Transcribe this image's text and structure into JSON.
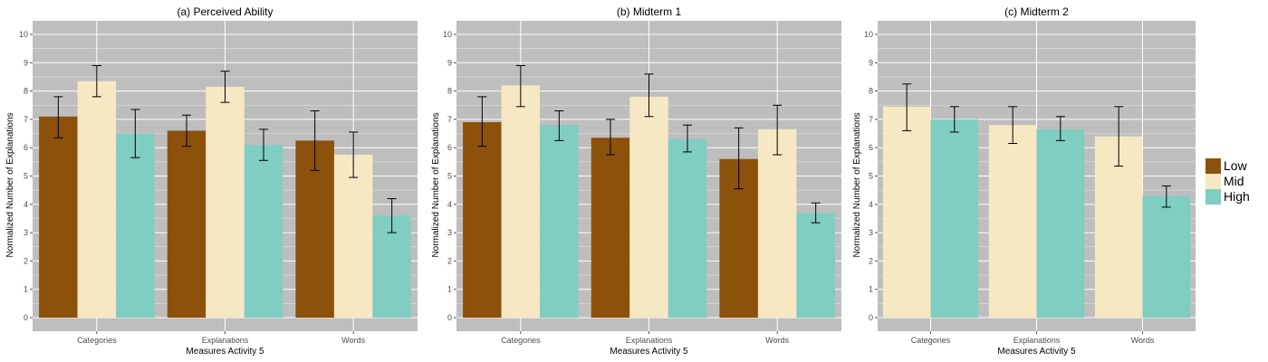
{
  "chart_data": [
    {
      "type": "bar",
      "title": "(a) Perceived Ability",
      "xlabel": "Measures Activity 5",
      "ylabel": "Normalized Number of Explanations",
      "ylim": [
        0,
        10
      ],
      "yticks": [
        0,
        1,
        2,
        3,
        4,
        5,
        6,
        7,
        8,
        9,
        10
      ],
      "grid": true,
      "categories": [
        "Categories",
        "Explanations",
        "Words"
      ],
      "series": [
        {
          "name": "Low",
          "color": "#8c510a",
          "values": [
            7.1,
            6.6,
            6.25
          ],
          "err_low": [
            6.35,
            6.05,
            5.2
          ],
          "err_high": [
            7.8,
            7.15,
            7.3
          ]
        },
        {
          "name": "Mid",
          "color": "#f6e8c3",
          "values": [
            8.35,
            8.15,
            5.75
          ],
          "err_low": [
            7.8,
            7.6,
            4.95
          ],
          "err_high": [
            8.9,
            8.7,
            6.55
          ]
        },
        {
          "name": "High",
          "color": "#80cdc1",
          "values": [
            6.5,
            6.1,
            3.6
          ],
          "err_low": [
            5.65,
            5.55,
            3.0
          ],
          "err_high": [
            7.35,
            6.65,
            4.2
          ]
        }
      ]
    },
    {
      "type": "bar",
      "title": "(b) Midterm 1",
      "xlabel": "Measures Activity 5",
      "ylabel": "Normalized Number of Explanations",
      "ylim": [
        0,
        10
      ],
      "yticks": [
        0,
        1,
        2,
        3,
        4,
        5,
        6,
        7,
        8,
        9,
        10
      ],
      "grid": true,
      "categories": [
        "Categories",
        "Explanations",
        "Words"
      ],
      "series": [
        {
          "name": "Low",
          "color": "#8c510a",
          "values": [
            6.9,
            6.35,
            5.6
          ],
          "err_low": [
            6.05,
            5.75,
            4.55
          ],
          "err_high": [
            7.8,
            7.0,
            6.7
          ]
        },
        {
          "name": "Mid",
          "color": "#f6e8c3",
          "values": [
            8.2,
            7.8,
            6.65
          ],
          "err_low": [
            7.45,
            7.1,
            5.75
          ],
          "err_high": [
            8.9,
            8.6,
            7.5
          ]
        },
        {
          "name": "High",
          "color": "#80cdc1",
          "values": [
            6.8,
            6.3,
            3.7
          ],
          "err_low": [
            6.25,
            5.85,
            3.35
          ],
          "err_high": [
            7.3,
            6.8,
            4.05
          ]
        }
      ]
    },
    {
      "type": "bar",
      "title": "(c) Midterm 2",
      "xlabel": "Measures Activity 5",
      "ylabel": "Normalized Number of Explanations",
      "ylim": [
        0,
        10
      ],
      "yticks": [
        0,
        1,
        2,
        3,
        4,
        5,
        6,
        7,
        8,
        9,
        10
      ],
      "grid": true,
      "categories": [
        "Categories",
        "Explanations",
        "Words"
      ],
      "series": [
        {
          "name": "Mid",
          "color": "#f6e8c3",
          "values": [
            7.45,
            6.8,
            6.4
          ],
          "err_low": [
            6.6,
            6.15,
            5.35
          ],
          "err_high": [
            8.25,
            7.45,
            7.45
          ]
        },
        {
          "name": "High",
          "color": "#80cdc1",
          "values": [
            7.0,
            6.65,
            4.3
          ],
          "err_low": [
            6.55,
            6.25,
            3.9
          ],
          "err_high": [
            7.45,
            7.1,
            4.65
          ]
        }
      ]
    }
  ],
  "legend": {
    "position": "right",
    "items": [
      {
        "label": "Low",
        "color": "#8c510a"
      },
      {
        "label": "Mid",
        "color": "#f6e8c3"
      },
      {
        "label": "High",
        "color": "#80cdc1"
      }
    ]
  },
  "colors": {
    "panel_background": "#bebebe",
    "grid": "#ffffff",
    "error_bar": "#000000"
  }
}
